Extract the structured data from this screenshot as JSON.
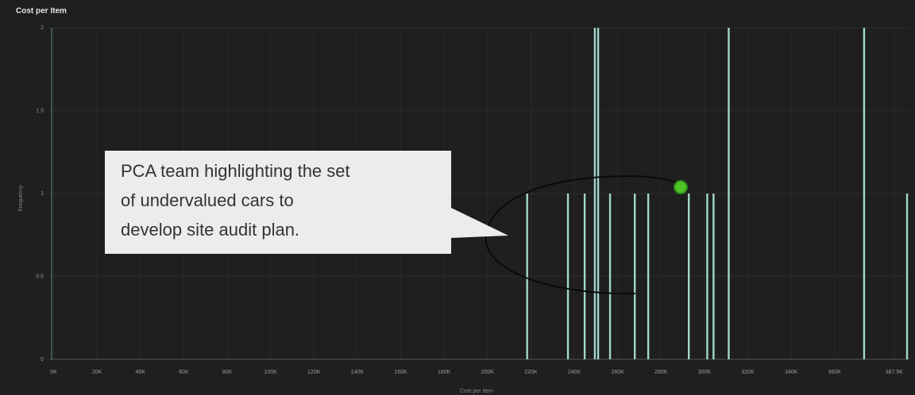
{
  "chart_data": {
    "type": "bar",
    "title": "Cost per Item",
    "x_label": "Cost per Item",
    "y_label": "Frequency",
    "x": [
      218300,
      237100,
      244800,
      249500,
      251000,
      256500,
      267900,
      274100,
      292800,
      301300,
      304200,
      311200,
      373600,
      393400
    ],
    "values": [
      1,
      1,
      1,
      2,
      2,
      1,
      1,
      1,
      1,
      1,
      1,
      2,
      2,
      1
    ],
    "color": "#9fd8cc",
    "xlim": [
      -2000,
      394500
    ],
    "xticks": [
      {
        "value": 0,
        "label": "0K"
      },
      {
        "value": 20000,
        "label": "20K"
      },
      {
        "value": 40000,
        "label": "40K"
      },
      {
        "value": 60000,
        "label": "60K"
      },
      {
        "value": 80000,
        "label": "80K"
      },
      {
        "value": 100000,
        "label": "100K"
      },
      {
        "value": 120000,
        "label": "120K"
      },
      {
        "value": 140000,
        "label": "140K"
      },
      {
        "value": 160000,
        "label": "160K"
      },
      {
        "value": 180000,
        "label": "180K"
      },
      {
        "value": 200000,
        "label": "200K"
      },
      {
        "value": 220000,
        "label": "220K"
      },
      {
        "value": 240000,
        "label": "240K"
      },
      {
        "value": 260000,
        "label": "260K"
      },
      {
        "value": 280000,
        "label": "280K"
      },
      {
        "value": 300000,
        "label": "300K"
      },
      {
        "value": 320000,
        "label": "320K"
      },
      {
        "value": 340000,
        "label": "340K"
      },
      {
        "value": 360000,
        "label": "360K"
      },
      {
        "value": 387500,
        "label": "387.5K"
      }
    ],
    "ylim": [
      0,
      2
    ],
    "yticks": [
      0,
      0.5,
      1,
      1.5,
      2
    ],
    "grid": true,
    "annotation": {
      "lines": [
        "PCA team highlighting the set",
        "of undervalued cars to",
        "develop site audit plan."
      ]
    }
  }
}
